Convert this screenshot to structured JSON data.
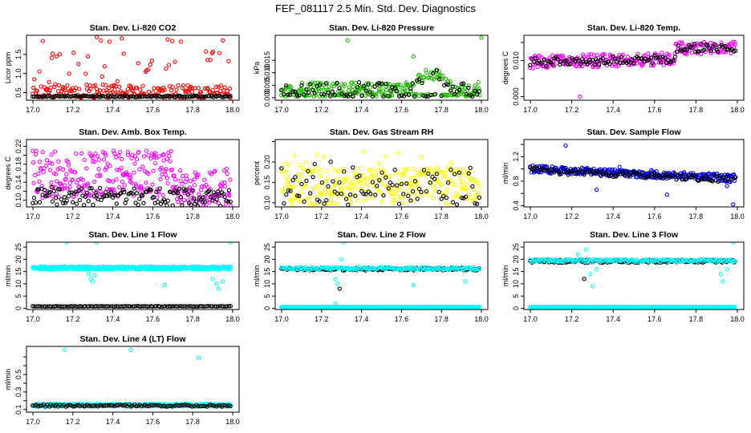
{
  "title": "FEF_081117  2.5 Min. Std. Dev. Diagnostics",
  "colors": {
    "red": "#ff0000",
    "green": "#22bb00",
    "magenta": "#ff00ff",
    "yellow": "#ffff00",
    "blue": "#0000ff",
    "cyan": "#00ffff",
    "black": "#000000"
  },
  "chart_data": [
    {
      "type": "scatter",
      "title": "Stan. Dev. Li-820 CO2",
      "ylabel": "Licor ppm",
      "xlim": [
        17.0,
        18.0
      ],
      "ylim": [
        0.3,
        2.0
      ],
      "xticks": [
        17.0,
        17.2,
        17.4,
        17.6,
        17.8,
        18.0
      ],
      "xtick_labels": [
        "17.0",
        "17.2",
        "17.4",
        "17.6",
        "17.8",
        "18.0"
      ],
      "yticks": [
        0.5,
        1.0,
        1.5
      ],
      "ytick_labels": [
        "0.5",
        "1.0",
        "1.5"
      ],
      "series": [
        {
          "name": "primary",
          "color": "#ff0000",
          "gen": {
            "mode": "band",
            "n": 230,
            "x0": 17.0,
            "x1": 17.99,
            "base": 0.55,
            "base_end": 0.5,
            "spread": 0.18,
            "outlier_frac": 0.2,
            "outlier_max": 1.4,
            "seed": 11
          }
        },
        {
          "name": "secondary",
          "color": "#000000",
          "gen": {
            "mode": "band",
            "n": 130,
            "x0": 17.0,
            "x1": 17.99,
            "base": 0.4,
            "base_end": 0.4,
            "spread": 0.02,
            "outlier_frac": 0,
            "outlier_max": 0,
            "seed": 12
          }
        }
      ],
      "outliers": [
        {
          "x": 17.05,
          "y": 1.85,
          "color": "#ff0000"
        },
        {
          "x": 17.32,
          "y": 1.95,
          "color": "#ff0000"
        },
        {
          "x": 17.98,
          "y": 1.32,
          "color": "#ff0000"
        }
      ]
    },
    {
      "type": "scatter",
      "title": "Stan. Dev. Li-820 Pressure",
      "ylabel": "kPa",
      "xlim": [
        17.0,
        18.0
      ],
      "ylim": [
        -0.001,
        0.025
      ],
      "xticks": [
        17.0,
        17.2,
        17.4,
        17.6,
        17.8,
        18.0
      ],
      "xtick_labels": [
        "17.0",
        "17.2",
        "17.4",
        "17.6",
        "17.8",
        "18.0"
      ],
      "yticks": [
        0.0,
        0.005,
        0.01,
        0.015
      ],
      "ytick_labels": [
        "0.000",
        "0.005",
        "0.010",
        "0.015"
      ],
      "series": [
        {
          "name": "primary",
          "color": "#22bb00",
          "gen": {
            "mode": "pressure",
            "n": 280,
            "x0": 17.0,
            "x1": 17.99,
            "seed": 21
          }
        },
        {
          "name": "secondary",
          "color": "#000000",
          "gen": {
            "mode": "pressure",
            "n": 90,
            "x0": 17.0,
            "x1": 17.99,
            "seed": 22
          }
        }
      ],
      "outliers": [
        {
          "x": 17.33,
          "y": 0.023,
          "color": "#22bb00"
        },
        {
          "x": 17.66,
          "y": 0.0165,
          "color": "#22bb00"
        },
        {
          "x": 18.0,
          "y": 0.024,
          "color": "#22bb00"
        }
      ]
    },
    {
      "type": "scatter",
      "title": "Stan. Dev. Li-820 Temp.",
      "ylabel": "degrees C",
      "xlim": [
        17.0,
        18.0
      ],
      "ylim": [
        -0.001,
        0.017
      ],
      "xticks": [
        17.0,
        17.2,
        17.4,
        17.6,
        17.8,
        18.0
      ],
      "xtick_labels": [
        "17.0",
        "17.2",
        "17.4",
        "17.6",
        "17.8",
        "18.0"
      ],
      "yticks": [
        0.0,
        0.005,
        0.01,
        0.015
      ],
      "ytick_labels": [
        "0.000",
        "",
        "0.010",
        ""
      ],
      "series": [
        {
          "name": "primary",
          "color": "#ff00ff",
          "gen": {
            "mode": "step",
            "n": 260,
            "x0": 17.0,
            "x1": 17.99,
            "base": 0.0095,
            "base_end": 0.011,
            "step_x": 17.7,
            "step_to": 0.0135,
            "spread": 0.0018,
            "seed": 31
          }
        },
        {
          "name": "secondary",
          "color": "#000000",
          "gen": {
            "mode": "step",
            "n": 120,
            "x0": 17.0,
            "x1": 17.99,
            "base": 0.0095,
            "base_end": 0.011,
            "step_x": 17.7,
            "step_to": 0.0135,
            "spread": 0.0012,
            "seed": 32
          }
        }
      ],
      "outliers": [
        {
          "x": 17.24,
          "y": 0.0,
          "color": "#ff00ff"
        }
      ]
    },
    {
      "type": "scatter",
      "title": "Stan. Dev. Amb. Box Temp.",
      "ylabel": "degrees C",
      "xlim": [
        17.0,
        18.0
      ],
      "ylim": [
        0.085,
        0.235
      ],
      "xticks": [
        17.0,
        17.2,
        17.4,
        17.6,
        17.8,
        18.0
      ],
      "xtick_labels": [
        "17.0",
        "17.2",
        "17.4",
        "17.6",
        "17.8",
        "18.0"
      ],
      "yticks": [
        0.1,
        0.12,
        0.14,
        0.16,
        0.18,
        0.2,
        0.22
      ],
      "ytick_labels": [
        "0.10",
        "",
        "0.14",
        "",
        "0.18",
        "",
        "0.22"
      ],
      "series": [
        {
          "name": "primary",
          "color": "#ff00ff",
          "gen": {
            "mode": "ambbox",
            "n": 320,
            "x0": 17.0,
            "x1": 17.99,
            "seed": 41
          }
        },
        {
          "name": "secondary",
          "color": "#000000",
          "gen": {
            "mode": "band",
            "n": 140,
            "x0": 17.0,
            "x1": 17.99,
            "base": 0.11,
            "base_end": 0.105,
            "spread": 0.02,
            "outlier_frac": 0,
            "outlier_max": 0,
            "seed": 42
          }
        }
      ],
      "outliers": []
    },
    {
      "type": "scatter",
      "title": "Stan. Dev. Gas Stream RH",
      "ylabel": "percent",
      "xlim": [
        17.0,
        18.0
      ],
      "ylim": [
        0.09,
        0.255
      ],
      "xticks": [
        17.0,
        17.2,
        17.4,
        17.6,
        17.8,
        18.0
      ],
      "xtick_labels": [
        "17.0",
        "17.2",
        "17.4",
        "17.6",
        "17.8",
        "18.0"
      ],
      "yticks": [
        0.1,
        0.15,
        0.2,
        0.25
      ],
      "ytick_labels": [
        "0.10",
        "0.15",
        "0.20",
        ""
      ],
      "series": [
        {
          "name": "primary",
          "color": "#ffff00",
          "gen": {
            "mode": "band",
            "n": 300,
            "x0": 17.0,
            "x1": 17.99,
            "base": 0.14,
            "base_end": 0.14,
            "spread": 0.045,
            "outlier_frac": 0.12,
            "outlier_max": 0.09,
            "seed": 51
          }
        },
        {
          "name": "secondary",
          "color": "#000000",
          "gen": {
            "mode": "band",
            "n": 90,
            "x0": 17.0,
            "x1": 17.99,
            "base": 0.14,
            "base_end": 0.14,
            "spread": 0.045,
            "outlier_frac": 0.05,
            "outlier_max": 0.07,
            "seed": 52
          }
        }
      ],
      "outliers": []
    },
    {
      "type": "scatter",
      "title": "Stan. Dev. Sample Flow",
      "ylabel": "ml/min",
      "xlim": [
        17.0,
        18.0
      ],
      "ylim": [
        0.38,
        1.48
      ],
      "xticks": [
        17.0,
        17.2,
        17.4,
        17.6,
        17.8,
        18.0
      ],
      "xtick_labels": [
        "17.0",
        "17.2",
        "17.4",
        "17.6",
        "17.8",
        "18.0"
      ],
      "yticks": [
        0.4,
        0.6,
        0.8,
        1.0,
        1.2,
        1.4
      ],
      "ytick_labels": [
        "0.4",
        "",
        "0.8",
        "",
        "1.2",
        ""
      ],
      "series": [
        {
          "name": "primary",
          "color": "#0000ff",
          "gen": {
            "mode": "band",
            "n": 300,
            "x0": 17.0,
            "x1": 17.99,
            "base": 1.0,
            "base_end": 0.85,
            "spread": 0.06,
            "outlier_frac": 0.02,
            "outlier_max": 0.15,
            "seed": 61
          }
        },
        {
          "name": "secondary",
          "color": "#000000",
          "gen": {
            "mode": "band",
            "n": 120,
            "x0": 17.0,
            "x1": 17.99,
            "base": 0.98,
            "base_end": 0.83,
            "spread": 0.05,
            "outlier_frac": 0,
            "outlier_max": 0,
            "seed": 62
          }
        }
      ],
      "outliers": [
        {
          "x": 17.17,
          "y": 1.38,
          "color": "#0000ff"
        },
        {
          "x": 17.32,
          "y": 0.66,
          "color": "#0000ff"
        },
        {
          "x": 17.66,
          "y": 0.58,
          "color": "#0000ff"
        },
        {
          "x": 17.95,
          "y": 0.72,
          "color": "#0000ff"
        },
        {
          "x": 17.98,
          "y": 0.42,
          "color": "#0000ff"
        }
      ]
    },
    {
      "type": "scatter",
      "title": "Stan. Dev. Line 1 Flow",
      "ylabel": "ml/min",
      "xlim": [
        17.0,
        18.0
      ],
      "ylim": [
        -0.5,
        27
      ],
      "xticks": [
        17.0,
        17.2,
        17.4,
        17.6,
        17.8,
        18.0
      ],
      "xtick_labels": [
        "17.0",
        "17.2",
        "17.4",
        "17.6",
        "17.8",
        "18.0"
      ],
      "yticks": [
        0,
        5,
        10,
        15,
        20,
        25
      ],
      "ytick_labels": [
        "0",
        "5",
        "10",
        "15",
        "20",
        "25"
      ],
      "series": [
        {
          "name": "primary",
          "color": "#00ffff",
          "gen": {
            "mode": "flat",
            "n": 420,
            "x0": 17.0,
            "x1": 17.99,
            "base": 16.5,
            "spread": 0.6,
            "seed": 71
          }
        },
        {
          "name": "secondary",
          "color": "#000000",
          "gen": {
            "mode": "flat",
            "n": 110,
            "x0": 17.0,
            "x1": 17.99,
            "base": 0.8,
            "spread": 0.1,
            "seed": 72
          }
        }
      ],
      "outliers": [
        {
          "x": 17.28,
          "y": 14,
          "color": "#00ffff"
        },
        {
          "x": 17.29,
          "y": 12,
          "color": "#00ffff"
        },
        {
          "x": 17.3,
          "y": 11,
          "color": "#00ffff"
        },
        {
          "x": 17.31,
          "y": 13.5,
          "color": "#00ffff"
        },
        {
          "x": 17.32,
          "y": 27,
          "color": "#00ffff"
        },
        {
          "x": 17.17,
          "y": 27,
          "color": "#00ffff"
        },
        {
          "x": 17.66,
          "y": 9.5,
          "color": "#00ffff"
        },
        {
          "x": 17.9,
          "y": 12,
          "color": "#00ffff"
        },
        {
          "x": 17.92,
          "y": 10,
          "color": "#00ffff"
        },
        {
          "x": 17.93,
          "y": 8,
          "color": "#00ffff"
        },
        {
          "x": 17.95,
          "y": 11,
          "color": "#00ffff"
        },
        {
          "x": 17.99,
          "y": 27,
          "color": "#00ffff"
        }
      ]
    },
    {
      "type": "scatter",
      "title": "Stan. Dev. Line 2 Flow",
      "ylabel": "ml/min",
      "xlim": [
        17.0,
        18.0
      ],
      "ylim": [
        -0.5,
        27
      ],
      "xticks": [
        17.0,
        17.2,
        17.4,
        17.6,
        17.8,
        18.0
      ],
      "xtick_labels": [
        "17.0",
        "17.2",
        "17.4",
        "17.6",
        "17.8",
        "18.0"
      ],
      "yticks": [
        0,
        5,
        10,
        15,
        20,
        25
      ],
      "ytick_labels": [
        "0",
        "5",
        "10",
        "15",
        "20",
        "25"
      ],
      "series": [
        {
          "name": "primary",
          "color": "#00ffff",
          "gen": {
            "mode": "flat",
            "n": 420,
            "x0": 17.0,
            "x1": 17.99,
            "base": 0.5,
            "spread": 0.08,
            "seed": 81
          }
        },
        {
          "name": "secondary",
          "color": "#000000",
          "gen": {
            "mode": "flat",
            "n": 140,
            "x0": 17.0,
            "x1": 17.99,
            "base": 16.0,
            "spread": 0.5,
            "seed": 82
          }
        },
        {
          "name": "tertiary",
          "color": "#00ffff",
          "gen": {
            "mode": "flat",
            "n": 160,
            "x0": 17.0,
            "x1": 17.99,
            "base": 16.3,
            "spread": 0.6,
            "seed": 83
          }
        }
      ],
      "outliers": [
        {
          "x": 17.27,
          "y": 12,
          "color": "#00ffff"
        },
        {
          "x": 17.28,
          "y": 10,
          "color": "#00ffff"
        },
        {
          "x": 17.29,
          "y": 8,
          "color": "#000000"
        },
        {
          "x": 17.3,
          "y": 20,
          "color": "#00ffff"
        },
        {
          "x": 17.31,
          "y": 27,
          "color": "#00ffff"
        },
        {
          "x": 17.27,
          "y": 2,
          "color": "#00ffff"
        },
        {
          "x": 17.66,
          "y": 9.5,
          "color": "#00ffff"
        },
        {
          "x": 17.92,
          "y": 11,
          "color": "#00ffff"
        }
      ]
    },
    {
      "type": "scatter",
      "title": "Stan. Dev. Line 3 Flow",
      "ylabel": "ml/min",
      "xlim": [
        17.0,
        18.0
      ],
      "ylim": [
        -0.5,
        27
      ],
      "xticks": [
        17.0,
        17.2,
        17.4,
        17.6,
        17.8,
        18.0
      ],
      "xtick_labels": [
        "17.0",
        "17.2",
        "17.4",
        "17.6",
        "17.8",
        "18.0"
      ],
      "yticks": [
        0,
        5,
        10,
        15,
        20,
        25
      ],
      "ytick_labels": [
        "0",
        "5",
        "10",
        "15",
        "20",
        "25"
      ],
      "series": [
        {
          "name": "primary",
          "color": "#00ffff",
          "gen": {
            "mode": "flat",
            "n": 420,
            "x0": 17.0,
            "x1": 17.99,
            "base": 0.5,
            "spread": 0.08,
            "seed": 91
          }
        },
        {
          "name": "secondary",
          "color": "#000000",
          "gen": {
            "mode": "flat",
            "n": 140,
            "x0": 17.0,
            "x1": 17.99,
            "base": 19.2,
            "spread": 0.6,
            "seed": 92
          }
        },
        {
          "name": "tertiary",
          "color": "#00ffff",
          "gen": {
            "mode": "flat",
            "n": 160,
            "x0": 17.0,
            "x1": 17.99,
            "base": 19.5,
            "spread": 0.6,
            "seed": 93
          }
        }
      ],
      "outliers": [
        {
          "x": 17.23,
          "y": 22,
          "color": "#00ffff"
        },
        {
          "x": 17.27,
          "y": 24,
          "color": "#00ffff"
        },
        {
          "x": 17.29,
          "y": 14,
          "color": "#00ffff"
        },
        {
          "x": 17.3,
          "y": 9,
          "color": "#00ffff"
        },
        {
          "x": 17.32,
          "y": 16,
          "color": "#00ffff"
        },
        {
          "x": 17.26,
          "y": 12,
          "color": "#000000"
        },
        {
          "x": 17.92,
          "y": 14,
          "color": "#00ffff"
        },
        {
          "x": 17.93,
          "y": 11,
          "color": "#00ffff"
        },
        {
          "x": 17.95,
          "y": 16,
          "color": "#00ffff"
        },
        {
          "x": 17.98,
          "y": 27,
          "color": "#00ffff"
        }
      ]
    },
    {
      "type": "scatter",
      "title": "Stan. Dev. Line 4 (LT) Flow",
      "ylabel": "ml/min",
      "xlim": [
        17.0,
        18.0
      ],
      "ylim": [
        0.07,
        0.82
      ],
      "xticks": [
        17.0,
        17.2,
        17.4,
        17.6,
        17.8,
        18.0
      ],
      "xtick_labels": [
        "17.0",
        "17.2",
        "17.4",
        "17.6",
        "17.8",
        "18.0"
      ],
      "yticks": [
        0.1,
        0.2,
        0.3,
        0.4,
        0.5,
        0.6,
        0.7
      ],
      "ytick_labels": [
        "0.1",
        "",
        "0.3",
        "",
        "0.5",
        "",
        ""
      ],
      "series": [
        {
          "name": "primary",
          "color": "#00ffff",
          "gen": {
            "mode": "flat",
            "n": 380,
            "x0": 17.0,
            "x1": 17.99,
            "base": 0.15,
            "spread": 0.015,
            "seed": 101
          }
        },
        {
          "name": "secondary",
          "color": "#000000",
          "gen": {
            "mode": "flat",
            "n": 110,
            "x0": 17.0,
            "x1": 17.99,
            "base": 0.145,
            "spread": 0.012,
            "seed": 102
          }
        }
      ],
      "outliers": [
        {
          "x": 17.16,
          "y": 0.78,
          "color": "#00ffff"
        },
        {
          "x": 17.49,
          "y": 0.78,
          "color": "#00ffff"
        },
        {
          "x": 17.83,
          "y": 0.69,
          "color": "#00ffff"
        }
      ]
    }
  ]
}
